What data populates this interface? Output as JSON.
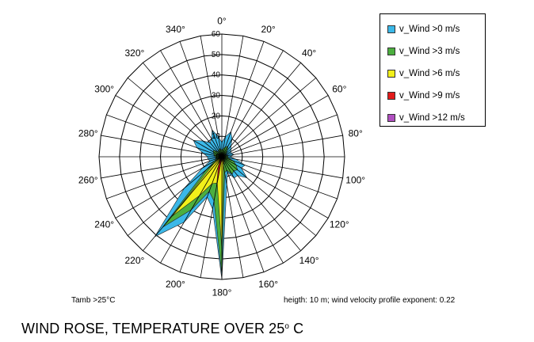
{
  "chart_data": {
    "type": "radar",
    "directions": [
      0,
      10,
      20,
      30,
      40,
      50,
      60,
      70,
      80,
      90,
      100,
      110,
      120,
      130,
      140,
      150,
      160,
      170,
      180,
      190,
      200,
      210,
      220,
      230,
      240,
      250,
      260,
      270,
      280,
      290,
      300,
      310,
      320,
      330,
      340,
      350
    ],
    "direction_labels": [
      "0°",
      "20°",
      "40°",
      "60°",
      "80°",
      "100°",
      "120°",
      "140°",
      "160°",
      "180°",
      "200°",
      "220°",
      "240°",
      "260°",
      "280°",
      "300°",
      "320°",
      "340°"
    ],
    "direction_label_angles": [
      0,
      20,
      40,
      60,
      80,
      100,
      120,
      140,
      160,
      180,
      200,
      220,
      240,
      260,
      280,
      300,
      320,
      340
    ],
    "radial_ticks": [
      0,
      10,
      20,
      30,
      40,
      50,
      60
    ],
    "radial_tick_labels": [
      "0",
      "10",
      "20",
      "30",
      "40",
      "50",
      "60"
    ],
    "rmax": 60,
    "series": [
      {
        "name": "v_Wind >0 m/s",
        "color": "#3bb8e8",
        "values": [
          7,
          10,
          13,
          10,
          7,
          6,
          5,
          5,
          6,
          4,
          7,
          12,
          11,
          16,
          12,
          12,
          8,
          14,
          60,
          26,
          21,
          37,
          51,
          24,
          11,
          6,
          7,
          7,
          9,
          13,
          16,
          12,
          9,
          10,
          14,
          10
        ]
      },
      {
        "name": "v_Wind >3 m/s",
        "color": "#4caf3f",
        "values": [
          3,
          4,
          5,
          6,
          4,
          3,
          2,
          2,
          3,
          3,
          3,
          6,
          8,
          10,
          9,
          10,
          7,
          8,
          58,
          22,
          18,
          30,
          45,
          10,
          4,
          3,
          3,
          3,
          4,
          4,
          5,
          5,
          3,
          3,
          4,
          4
        ]
      },
      {
        "name": "v_Wind >6 m/s",
        "color": "#f2f01a",
        "values": [
          1,
          1,
          1,
          1,
          1,
          1,
          1,
          1,
          1,
          1,
          1,
          1,
          1,
          1,
          2,
          2,
          3,
          4,
          45,
          13,
          14,
          22,
          38,
          5,
          2,
          1,
          1,
          1,
          1,
          1,
          1,
          1,
          1,
          1,
          1,
          1
        ]
      },
      {
        "name": "v_Wind >9 m/s",
        "color": "#e21a1a",
        "values": [
          0,
          0,
          0,
          0,
          0,
          0,
          0,
          0,
          0,
          0,
          0,
          0,
          0,
          0,
          0,
          0,
          0,
          0,
          0,
          15,
          5,
          2,
          0,
          0,
          0,
          0,
          0,
          0,
          0,
          0,
          0,
          0,
          0,
          0,
          0,
          0
        ]
      },
      {
        "name": "v_Wind >12 m/s",
        "color": "#b04fc0",
        "values": [
          0,
          0,
          0,
          0,
          0,
          0,
          0,
          0,
          0,
          0,
          0,
          0,
          0,
          0,
          0,
          0,
          0,
          0,
          0,
          0,
          0,
          0,
          0,
          0,
          0,
          0,
          0,
          0,
          0,
          0,
          0,
          0,
          0,
          0,
          0,
          0
        ]
      }
    ],
    "note_left": "Tamb >25°C",
    "note_right": "heigth: 10 m; wind velocity profile exponent: 0.22"
  },
  "caption": {
    "text": "WIND ROSE, TEMPERATURE OVER 25",
    "degree_sign": "o",
    "unit": " C"
  }
}
